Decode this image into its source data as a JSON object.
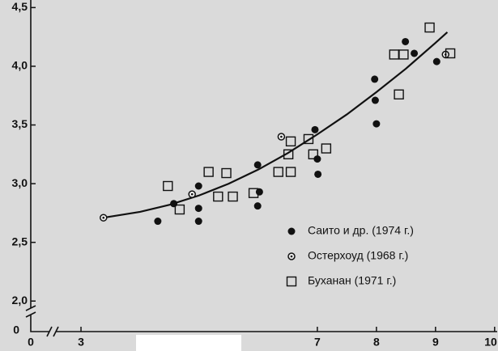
{
  "chart_data": {
    "type": "scatter",
    "x_zero_label": "0",
    "y_zero_label": "0",
    "xlim": [
      2.15,
      10.03
    ],
    "ylim": [
      1.74,
      4.53
    ],
    "xticks": [
      3,
      7,
      8,
      9,
      10
    ],
    "yticks": [
      {
        "value": 2.0,
        "label": "2,0"
      },
      {
        "value": 2.5,
        "label": "2,5"
      },
      {
        "value": 3.0,
        "label": "3,0"
      },
      {
        "value": 3.5,
        "label": "3,5"
      },
      {
        "value": 4.0,
        "label": "4,0"
      },
      {
        "value": 4.5,
        "label": "4,5"
      }
    ],
    "legend": "lower right",
    "series": [
      {
        "name": "Саито и др. (1974 г.)",
        "color": "#111111",
        "marker": "filled-circle",
        "x": [
          4.3,
          4.57,
          4.99,
          4.99,
          4.99,
          5.99,
          6.02,
          5.99,
          6.96,
          7.0,
          7.01,
          7.97,
          7.98,
          8.0,
          8.49,
          8.64,
          9.02
        ],
        "values": [
          2.68,
          2.83,
          2.98,
          2.79,
          2.68,
          3.16,
          2.93,
          2.81,
          3.46,
          3.21,
          3.08,
          3.89,
          3.71,
          3.51,
          4.21,
          4.11,
          4.04
        ]
      },
      {
        "name": "Остерхоуд (1968 г.)",
        "color": "#111111",
        "marker": "dotted-circle",
        "x": [
          3.38,
          4.88,
          6.39,
          9.17
        ],
        "values": [
          2.71,
          2.91,
          3.4,
          4.1
        ]
      },
      {
        "name": "Буханан (1971 г.)",
        "color": "#111111",
        "marker": "square",
        "x": [
          4.47,
          4.67,
          5.16,
          5.32,
          5.46,
          5.57,
          5.92,
          6.34,
          6.51,
          6.55,
          6.55,
          6.85,
          6.93,
          7.15,
          8.3,
          8.38,
          8.46,
          8.9,
          9.25
        ],
        "values": [
          2.98,
          2.78,
          3.1,
          2.89,
          3.09,
          2.89,
          2.92,
          3.1,
          3.25,
          3.36,
          3.1,
          3.38,
          3.25,
          3.3,
          4.1,
          3.76,
          4.1,
          4.33,
          4.11
        ]
      }
    ],
    "curve": {
      "color": "#111111",
      "x": [
        3.38,
        4.0,
        4.5,
        5.0,
        5.5,
        6.0,
        6.5,
        7.0,
        7.5,
        8.0,
        8.5,
        9.0,
        9.2
      ],
      "values": [
        2.71,
        2.76,
        2.82,
        2.9,
        3.0,
        3.12,
        3.26,
        3.42,
        3.59,
        3.78,
        3.98,
        4.2,
        4.29
      ]
    }
  }
}
